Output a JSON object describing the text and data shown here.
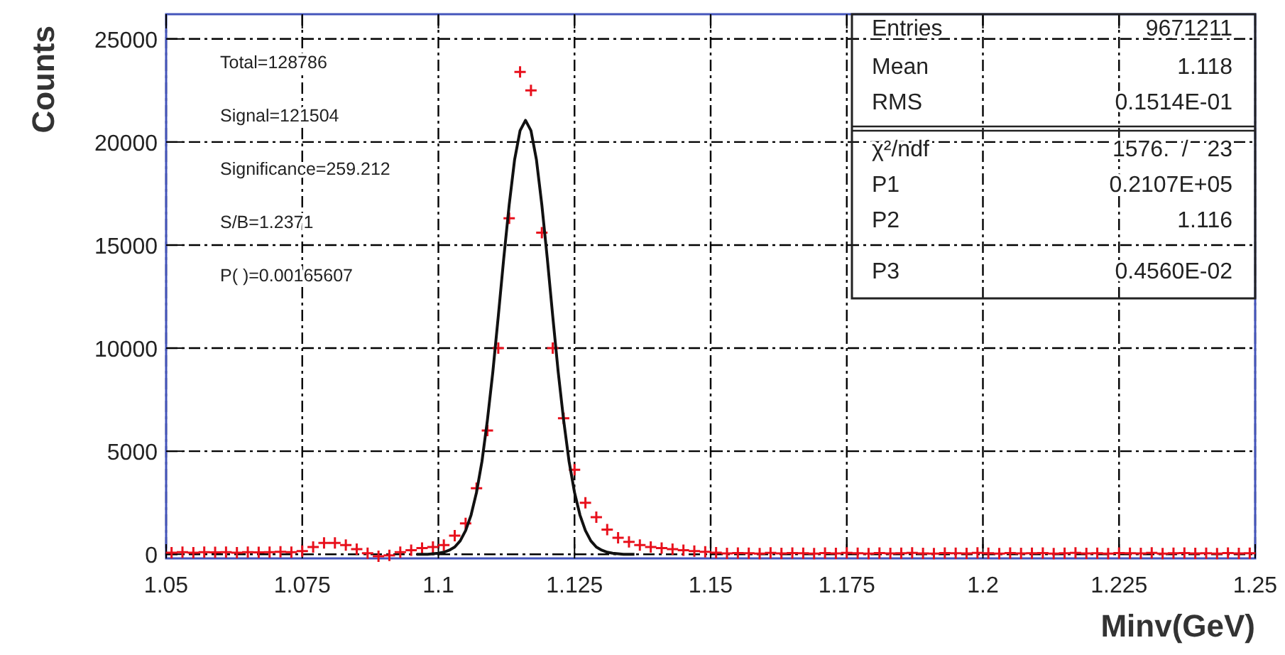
{
  "chart_data": {
    "type": "scatter",
    "xlabel": "Minv(GeV)",
    "ylabel": "Counts",
    "xlim": [
      1.05,
      1.25
    ],
    "xticks": [
      1.05,
      1.075,
      1.1,
      1.125,
      1.15,
      1.175,
      1.2,
      1.225,
      1.25
    ],
    "ylim": [
      -200,
      26200
    ],
    "yticks": [
      0,
      5000,
      10000,
      15000,
      20000,
      25000
    ],
    "grid": true,
    "annotations": [
      "Total=128786",
      "Signal=121504",
      "Significance=259.212",
      "S/B=1.2371",
      "P( )=0.00165607",
      "Entries",
      "9671211",
      "Mean",
      "1.118",
      "RMS",
      "0.1514E-01",
      "χ²/ndf",
      "1576.  /   23",
      "P1",
      "0.2107E+05",
      "P2",
      "1.116",
      "P3",
      "0.4560E-02"
    ],
    "series": [
      {
        "color": "#e8101c",
        "marker": "cross",
        "x": [
          1.051,
          1.053,
          1.055,
          1.057,
          1.059,
          1.061,
          1.063,
          1.065,
          1.067,
          1.069,
          1.071,
          1.073,
          1.075,
          1.077,
          1.079,
          1.081,
          1.083,
          1.085,
          1.087,
          1.089,
          1.091,
          1.093,
          1.095,
          1.097,
          1.099,
          1.101,
          1.103,
          1.105,
          1.107,
          1.109,
          1.111,
          1.113,
          1.115,
          1.117,
          1.119,
          1.121,
          1.123,
          1.125,
          1.127,
          1.129,
          1.131,
          1.133,
          1.135,
          1.137,
          1.139,
          1.141,
          1.143,
          1.145,
          1.147,
          1.149,
          1.151,
          1.153,
          1.155,
          1.157,
          1.159,
          1.161,
          1.163,
          1.165,
          1.167,
          1.169,
          1.171,
          1.173,
          1.175,
          1.177,
          1.179,
          1.181,
          1.183,
          1.185,
          1.187,
          1.189,
          1.191,
          1.193,
          1.195,
          1.197,
          1.199,
          1.201,
          1.203,
          1.205,
          1.207,
          1.209,
          1.211,
          1.213,
          1.215,
          1.217,
          1.219,
          1.221,
          1.223,
          1.225,
          1.227,
          1.229,
          1.231,
          1.233,
          1.235,
          1.237,
          1.239,
          1.241,
          1.243,
          1.245,
          1.247,
          1.249
        ],
        "values": [
          80,
          100,
          80,
          100,
          90,
          100,
          80,
          100,
          90,
          100,
          120,
          100,
          150,
          350,
          550,
          550,
          450,
          250,
          50,
          -100,
          -50,
          100,
          200,
          300,
          350,
          450,
          900,
          1500,
          3200,
          6000,
          10000,
          16300,
          23400,
          22500,
          15600,
          10000,
          6600,
          4100,
          2500,
          1800,
          1200,
          800,
          600,
          450,
          350,
          300,
          250,
          200,
          150,
          120,
          80,
          40,
          60,
          50,
          30,
          70,
          40,
          60,
          50,
          30,
          60,
          40,
          70,
          50,
          30,
          60,
          40,
          50,
          70,
          40,
          30,
          60,
          50,
          40,
          70,
          50,
          30,
          60,
          40,
          50,
          60,
          30,
          50,
          70,
          40,
          50,
          30,
          60,
          50,
          40,
          70,
          30,
          50,
          60,
          40,
          50,
          30,
          60,
          40,
          50
        ]
      },
      {
        "type": "line",
        "color": "#111111",
        "marker": "none",
        "line_style": "solid",
        "x": [
          1.096,
          1.098,
          1.1,
          1.101,
          1.102,
          1.103,
          1.104,
          1.105,
          1.106,
          1.107,
          1.108,
          1.109,
          1.11,
          1.111,
          1.112,
          1.113,
          1.114,
          1.115,
          1.116,
          1.117,
          1.118,
          1.119,
          1.12,
          1.121,
          1.122,
          1.123,
          1.124,
          1.125,
          1.126,
          1.127,
          1.128,
          1.129,
          1.13,
          1.131,
          1.132,
          1.134,
          1.136
        ],
        "values": [
          0,
          0,
          50,
          100,
          200,
          350,
          650,
          1150,
          1900,
          3000,
          4500,
          6500,
          8850,
          11550,
          14350,
          16950,
          19150,
          20550,
          21050,
          20550,
          19150,
          16950,
          14350,
          11550,
          8850,
          6500,
          4500,
          3000,
          1900,
          1150,
          650,
          350,
          200,
          100,
          50,
          0,
          0
        ]
      }
    ]
  }
}
